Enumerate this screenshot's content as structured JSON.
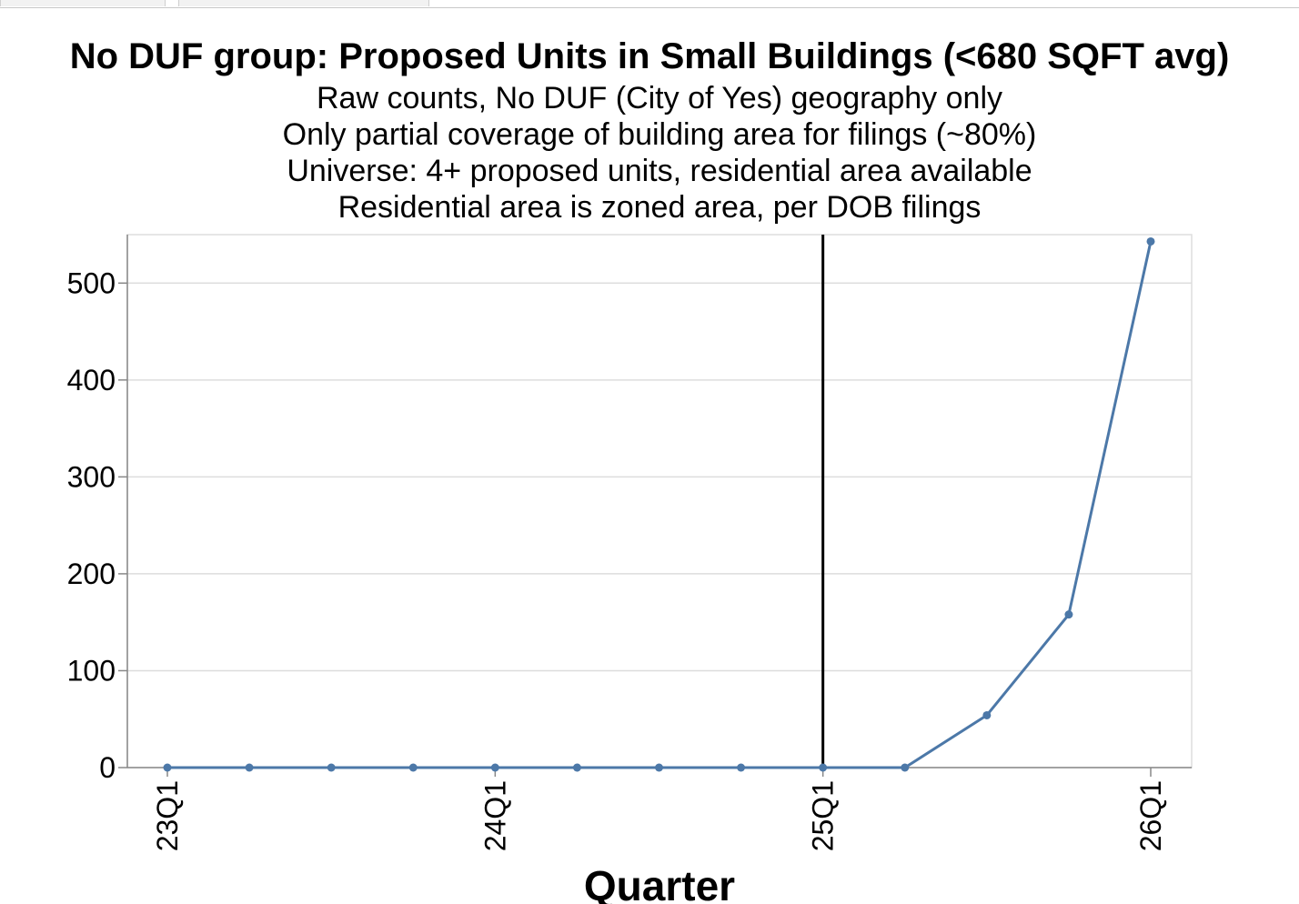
{
  "chart_data": {
    "type": "line",
    "title": "No DUF group: Proposed Units in Small Buildings (<680 SQFT avg)",
    "subtitle": [
      "Raw counts, No DUF (City of Yes) geography only",
      "Only partial coverage of building area for filings (~80%)",
      "Universe: 4+ proposed units, residential area available",
      "Residential area is zoned area, per DOB filings"
    ],
    "xlabel": "Quarter",
    "ylabel": "",
    "x": [
      "23Q1",
      "23Q2",
      "23Q3",
      "23Q4",
      "24Q1",
      "24Q2",
      "24Q3",
      "24Q4",
      "25Q1",
      "25Q2",
      "25Q3",
      "25Q4",
      "26Q1"
    ],
    "x_tick_labels": [
      "23Q1",
      "24Q1",
      "25Q1",
      "26Q1"
    ],
    "series": [
      {
        "values": [
          0,
          0,
          0,
          0,
          0,
          0,
          0,
          0,
          0,
          0,
          54,
          158,
          543
        ],
        "color": "#4c78a8"
      }
    ],
    "y_ticks": [
      0,
      100,
      200,
      300,
      400,
      500
    ],
    "ylim": [
      0,
      550
    ],
    "reference_line": {
      "x": "25Q1",
      "color": "#000000"
    },
    "grid": true,
    "legend": "none"
  }
}
